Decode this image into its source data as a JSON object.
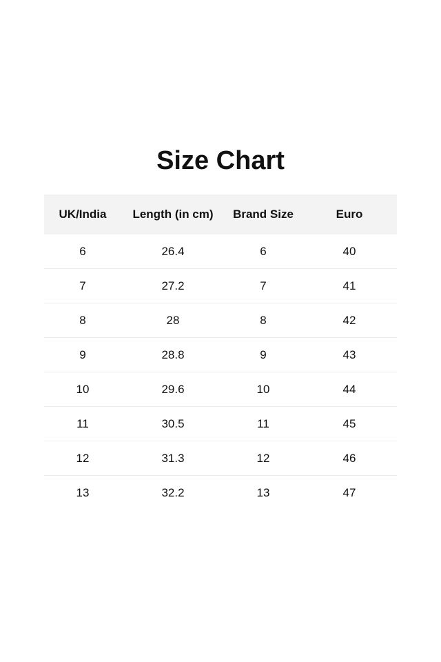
{
  "title": "Size Chart",
  "table": {
    "headers": [
      "UK/India",
      "Length (in cm)",
      "Brand Size",
      "Euro"
    ],
    "rows": [
      [
        "6",
        "26.4",
        "6",
        "40"
      ],
      [
        "7",
        "27.2",
        "7",
        "41"
      ],
      [
        "8",
        "28",
        "8",
        "42"
      ],
      [
        "9",
        "28.8",
        "9",
        "43"
      ],
      [
        "10",
        "29.6",
        "10",
        "44"
      ],
      [
        "11",
        "30.5",
        "11",
        "45"
      ],
      [
        "12",
        "31.3",
        "12",
        "46"
      ],
      [
        "13",
        "32.2",
        "13",
        "47"
      ]
    ]
  }
}
